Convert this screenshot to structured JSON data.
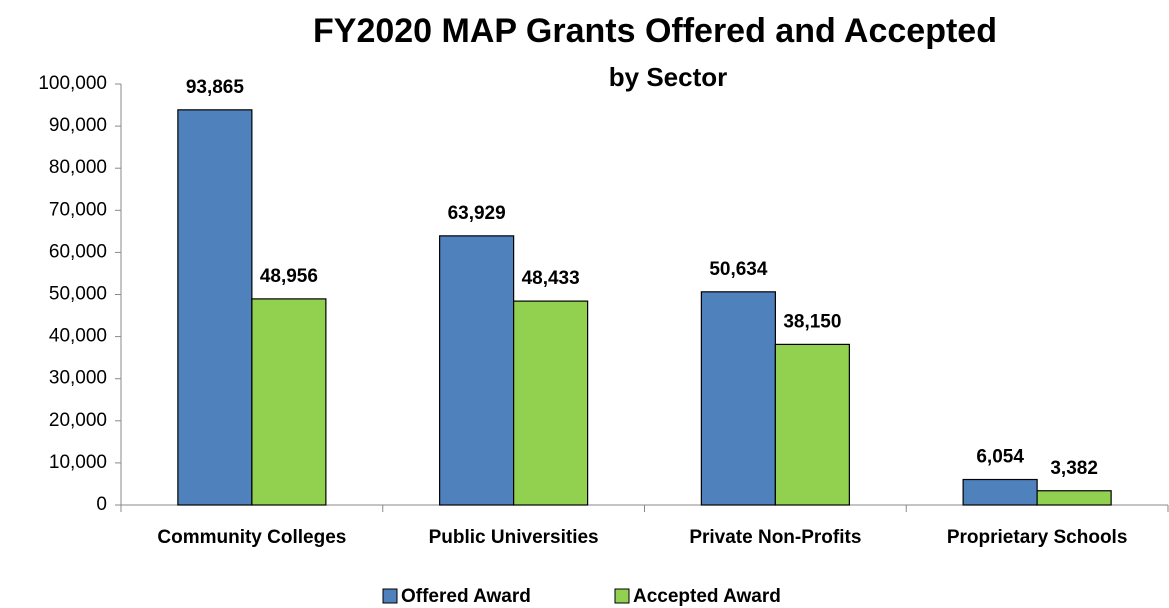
{
  "chart_data": {
    "type": "bar",
    "title": "FY2020 MAP Grants Offered and Accepted",
    "subtitle": "by Sector",
    "categories": [
      "Community Colleges",
      "Public Universities",
      "Private Non-Profits",
      "Proprietary Schools"
    ],
    "series": [
      {
        "name": "Offered Award",
        "color": "#4f81bd",
        "values": [
          93865,
          63929,
          50634,
          6054
        ],
        "value_labels": [
          "93,865",
          "63,929",
          "50,634",
          "6,054"
        ]
      },
      {
        "name": "Accepted Award",
        "color": "#92d050",
        "values": [
          48956,
          48433,
          38150,
          3382
        ],
        "value_labels": [
          "48,956",
          "48,433",
          "38,150",
          "3,382"
        ]
      }
    ],
    "ylim": [
      0,
      100000
    ],
    "yticks": [
      0,
      {
        "value": 10000,
        "label": "10,000"
      },
      {
        "value": 20000,
        "label": "20,000"
      },
      {
        "value": 30000,
        "label": "30,000"
      },
      {
        "value": 40000,
        "label": "40,000"
      },
      {
        "value": 50000,
        "label": "50,000"
      },
      {
        "value": 60000,
        "label": "60,000"
      },
      {
        "value": 70000,
        "label": "70,000"
      },
      {
        "value": 80000,
        "label": "80,000"
      },
      {
        "value": 90000,
        "label": "90,000"
      },
      {
        "value": 100000,
        "label": "100,000"
      }
    ],
    "grid": false,
    "legend": "bottom"
  }
}
